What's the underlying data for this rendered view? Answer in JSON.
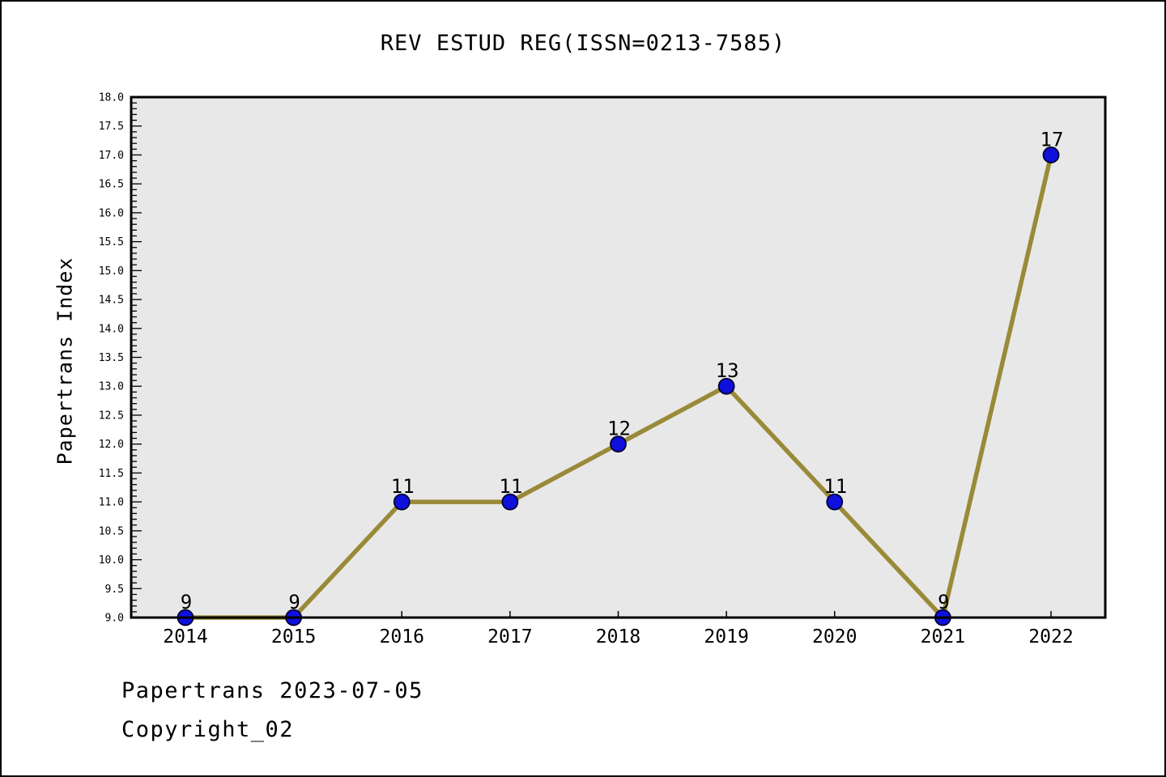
{
  "header": {
    "title": "REV ESTUD REG(ISSN=0213-7585)"
  },
  "footer": {
    "line1": "Papertrans 2023-07-05",
    "line2": "Copyright_02"
  },
  "chart_data": {
    "type": "line",
    "title": "REV ESTUD REG(ISSN=0213-7585)",
    "x": [
      "2014",
      "2015",
      "2016",
      "2017",
      "2018",
      "2019",
      "2020",
      "2021",
      "2022"
    ],
    "values": [
      9,
      9,
      11,
      11,
      12,
      13,
      11,
      9,
      17
    ],
    "point_labels": [
      "9",
      "9",
      "11",
      "11",
      "12",
      "13",
      "11",
      "9",
      "17"
    ],
    "xlabel": "",
    "ylabel": "Papertrans Index",
    "ylim": [
      9.0,
      18.0
    ],
    "y_major_step": 0.5,
    "y_minor_step": 0.1,
    "y_tick_decimals": 1,
    "grid": false,
    "legend": null,
    "colors": {
      "line": "#9a8a38",
      "marker_fill": "#0f10dc",
      "marker_edge": "#000030",
      "plot_background": "#e8e8e8",
      "frame": "#000000",
      "text": "#000000"
    }
  }
}
